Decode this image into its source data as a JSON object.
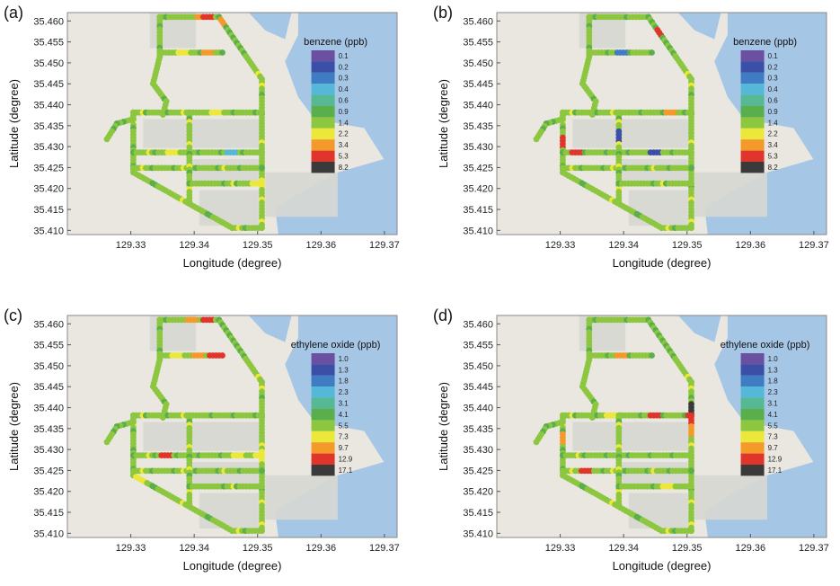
{
  "figure": {
    "colors": {
      "map_land": "#e9e7e0",
      "map_water": "#a6c6e6",
      "map_built": "#d7d7d2",
      "frame": "#888888"
    },
    "panels": [
      {
        "label": "(a)",
        "pollutant": "benzene",
        "legend_title": "benzene (ppb)",
        "legend_levels": [
          "0.1",
          "0.2",
          "0.3",
          "0.4",
          "0.6",
          "0.9",
          "1.4",
          "2.2",
          "3.4",
          "5.3",
          "8.2"
        ],
        "route_profile": "a"
      },
      {
        "label": "(b)",
        "pollutant": "benzene",
        "legend_title": "benzene (ppb)",
        "legend_levels": [
          "0.1",
          "0.2",
          "0.3",
          "0.4",
          "0.6",
          "0.9",
          "1.4",
          "2.2",
          "3.4",
          "5.3",
          "8.2"
        ],
        "route_profile": "b"
      },
      {
        "label": "(c)",
        "pollutant": "ethylene oxide",
        "legend_title": "ethylene oxide (ppb)",
        "legend_levels": [
          "1.0",
          "1.3",
          "1.8",
          "2.3",
          "3.1",
          "4.1",
          "5.5",
          "7.3",
          "9.7",
          "12.9",
          "17.1"
        ],
        "route_profile": "c"
      },
      {
        "label": "(d)",
        "pollutant": "ethylene oxide",
        "legend_title": "ethylene oxide (ppb)",
        "legend_levels": [
          "1.0",
          "1.3",
          "1.8",
          "2.3",
          "3.1",
          "4.1",
          "5.5",
          "7.3",
          "9.7",
          "12.9",
          "17.1"
        ],
        "route_profile": "d"
      }
    ],
    "legend_colors": [
      "#6b4fa0",
      "#3b4fa6",
      "#3f7cc2",
      "#56b8d8",
      "#57b894",
      "#5aae4c",
      "#8dc63f",
      "#ece83a",
      "#f39a2b",
      "#e0352b",
      "#3a3a3a"
    ],
    "x_axis": {
      "label": "Longitude (degree)",
      "ticks": [
        "129.33",
        "129.34",
        "129.35",
        "129.36",
        "129.37"
      ],
      "range": [
        129.32,
        129.372
      ]
    },
    "y_axis": {
      "label": "Latitude (degree)",
      "ticks": [
        "35.410",
        "35.415",
        "35.420",
        "35.425",
        "35.430",
        "35.435",
        "35.440",
        "35.445",
        "35.450",
        "35.455",
        "35.460"
      ],
      "range": [
        35.409,
        35.462
      ]
    }
  }
}
